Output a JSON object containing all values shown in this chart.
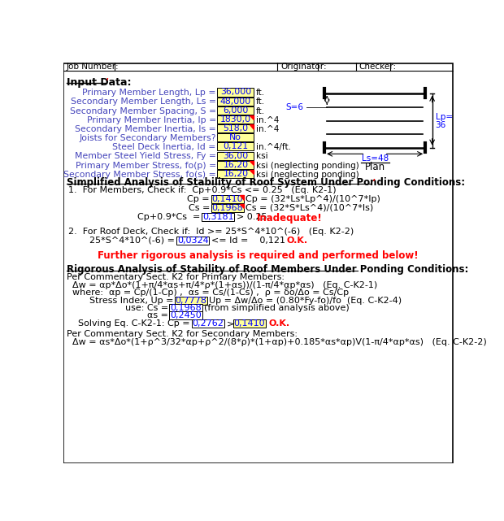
{
  "bg_color": "#ffffff",
  "yellow_bg": "#ffff99",
  "input_data": [
    {
      "label": "Primary Member Length, Lp =",
      "value": "36,000",
      "unit": "ft."
    },
    {
      "label": "Secondary Member Length, Ls =",
      "value": "48,000",
      "unit": "ft."
    },
    {
      "label": "Secondary Member Spacing, S =",
      "value": "6,000",
      "unit": "ft."
    },
    {
      "label": "Primary Member Inertia, Ip =",
      "value": "1830,0",
      "unit": "in.^4",
      "red_corner": true
    },
    {
      "label": "Secondary Member Inertia, Is =",
      "value": "518,0",
      "unit": "in.^4",
      "red_corner": true
    },
    {
      "label": "Joists for Secondary Members?",
      "value": "No",
      "unit": ""
    },
    {
      "label": "Steel Deck Inertia, Id =",
      "value": "0,121",
      "unit": "in.^4/ft."
    },
    {
      "label": "Member Steel Yield Stress, Fy =",
      "value": "36,00",
      "unit": "ksi"
    },
    {
      "label": "Primary Member Stress, fo(p) =",
      "value": "16,20",
      "unit": "ksi (neglecting ponding)",
      "red_corner": true
    },
    {
      "label": "Secondary Member Stress, fo(s) =",
      "value": "16,20",
      "unit": "ksi (neglecting ponding)",
      "red_corner": true
    }
  ],
  "cp_value": "0,1410",
  "cs_value": "0,1968",
  "cpcs_value": "0,3181",
  "cp_formula": "Cp = (32*Ls*Lp^4)/(10^7*Ip)",
  "cs_formula": "Cs = (32*S*Ls^4)/(10^7*Is)",
  "deck_value": "0,0324",
  "deck_id": "0,121",
  "up_value": "0,7778",
  "cs_rigorous": "0,1968",
  "alpha_s_value": "0,2450",
  "cp_solved": "0,2762",
  "cp_compare": "0,1410"
}
